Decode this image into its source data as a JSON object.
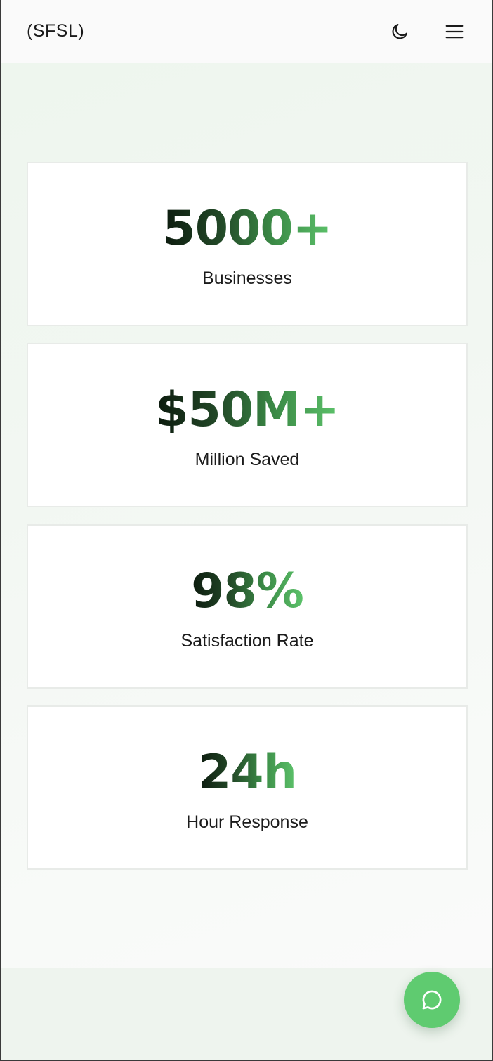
{
  "header": {
    "brand": "(SFSL)",
    "icons": [
      "moon-icon",
      "menu-icon"
    ]
  },
  "stats": [
    {
      "value": "5000+",
      "label": "Businesses"
    },
    {
      "value": "$50M+",
      "label": "Million Saved"
    },
    {
      "value": "98%",
      "label": "Satisfaction Rate"
    },
    {
      "value": "24h",
      "label": "Hour Response"
    }
  ],
  "chat": {
    "icon": "chat-bubble-icon"
  },
  "colors": {
    "accent": "#5fcb70",
    "gradient_dark": "#0c1a0e",
    "gradient_light": "#5cc26a"
  }
}
